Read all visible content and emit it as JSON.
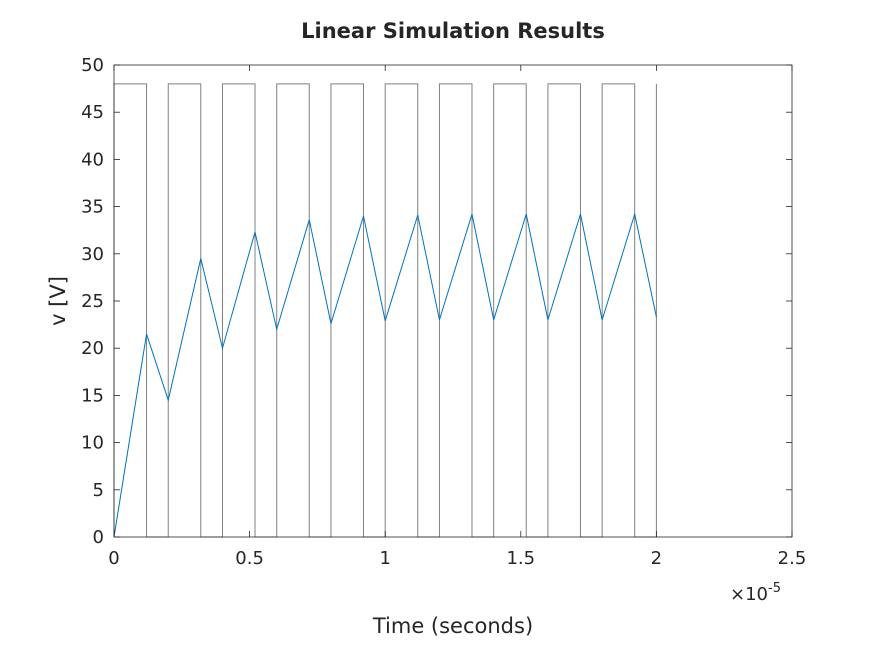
{
  "chart_data": {
    "type": "line",
    "title": "Linear Simulation Results",
    "xlabel": "Time (seconds)",
    "ylabel": "v [V]",
    "x_exponent_label": "×10",
    "x_exponent_power": "-5",
    "xlim": [
      0,
      2.5
    ],
    "ylim": [
      0,
      50
    ],
    "x_ticks": [
      0,
      0.5,
      1,
      1.5,
      2,
      2.5
    ],
    "x_tick_labels": [
      "0",
      "0.5",
      "1",
      "1.5",
      "2",
      "2.5"
    ],
    "y_ticks": [
      0,
      5,
      10,
      15,
      20,
      25,
      30,
      35,
      40,
      45,
      50
    ],
    "y_tick_labels": [
      "0",
      "5",
      "10",
      "15",
      "20",
      "25",
      "30",
      "35",
      "40",
      "45",
      "50"
    ],
    "grid": false,
    "series": [
      {
        "color": "#808080",
        "x": [
          0,
          0,
          0.12,
          0.12,
          0.2,
          0.2,
          0.32,
          0.32,
          0.4,
          0.4,
          0.52,
          0.52,
          0.6,
          0.6,
          0.72,
          0.72,
          0.8,
          0.8,
          0.92,
          0.92,
          1.0,
          1.0,
          1.12,
          1.12,
          1.2,
          1.2,
          1.32,
          1.32,
          1.4,
          1.4,
          1.52,
          1.52,
          1.6,
          1.6,
          1.72,
          1.72,
          1.8,
          1.8,
          1.92,
          1.92,
          2.0,
          2.0
        ],
        "y": [
          0,
          48,
          48,
          0,
          0,
          48,
          48,
          0,
          0,
          48,
          48,
          0,
          0,
          48,
          48,
          0,
          0,
          48,
          48,
          0,
          0,
          48,
          48,
          0,
          0,
          48,
          48,
          0,
          0,
          48,
          48,
          0,
          0,
          48,
          48,
          0,
          0,
          48,
          48,
          0,
          0,
          48
        ]
      },
      {
        "color": "#0072BD",
        "x": [
          0,
          0.12,
          0.2,
          0.32,
          0.4,
          0.52,
          0.6,
          0.72,
          0.8,
          0.92,
          1.0,
          1.12,
          1.2,
          1.32,
          1.4,
          1.52,
          1.6,
          1.72,
          1.8,
          1.92,
          2.0
        ],
        "y": [
          0,
          21.5,
          14.5,
          29.5,
          20.0,
          32.3,
          22.0,
          33.6,
          22.6,
          34.0,
          22.9,
          34.1,
          23.0,
          34.2,
          23.0,
          34.2,
          23.0,
          34.2,
          23.0,
          34.2,
          23.3
        ]
      }
    ]
  }
}
